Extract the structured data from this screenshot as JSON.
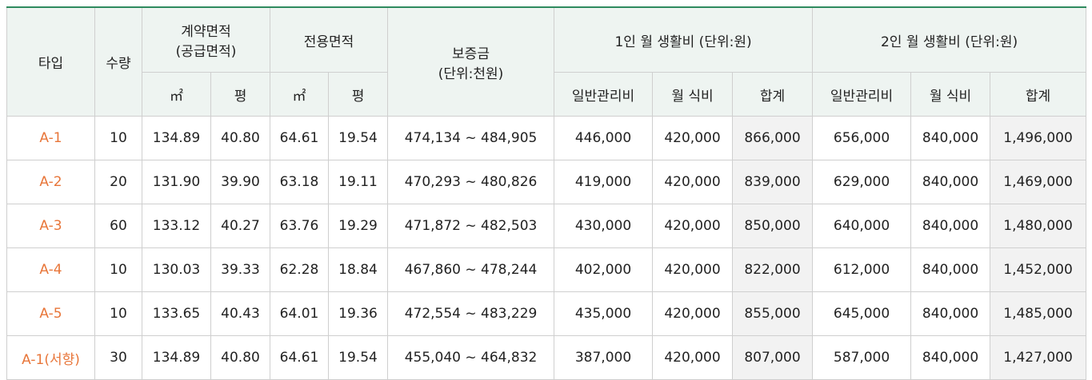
{
  "headers": {
    "type": "타입",
    "count": "수량",
    "contract_area": "계약면적\n(공급면적)",
    "exclusive_area": "전용면적",
    "deposit": "보증금\n(단위:천원)",
    "one_person": "1인 월 생활비 (단위:원)",
    "two_person": "2인 월 생활비 (단위:원)",
    "sqm": "㎡",
    "pyeong": "평",
    "general_fee": "일반관리비",
    "meal_fee": "월 식비",
    "total": "합계"
  },
  "rows": [
    {
      "type": "A-1",
      "count": "10",
      "contract_sqm": "134.89",
      "contract_py": "40.80",
      "excl_sqm": "64.61",
      "excl_py": "19.54",
      "deposit": "474,134 ~ 484,905",
      "p1_general": "446,000",
      "p1_meal": "420,000",
      "p1_total": "866,000",
      "p2_general": "656,000",
      "p2_meal": "840,000",
      "p2_total": "1,496,000"
    },
    {
      "type": "A-2",
      "count": "20",
      "contract_sqm": "131.90",
      "contract_py": "39.90",
      "excl_sqm": "63.18",
      "excl_py": "19.11",
      "deposit": "470,293 ~ 480,826",
      "p1_general": "419,000",
      "p1_meal": "420,000",
      "p1_total": "839,000",
      "p2_general": "629,000",
      "p2_meal": "840,000",
      "p2_total": "1,469,000"
    },
    {
      "type": "A-3",
      "count": "60",
      "contract_sqm": "133.12",
      "contract_py": "40.27",
      "excl_sqm": "63.76",
      "excl_py": "19.29",
      "deposit": "471,872 ~ 482,503",
      "p1_general": "430,000",
      "p1_meal": "420,000",
      "p1_total": "850,000",
      "p2_general": "640,000",
      "p2_meal": "840,000",
      "p2_total": "1,480,000"
    },
    {
      "type": "A-4",
      "count": "10",
      "contract_sqm": "130.03",
      "contract_py": "39.33",
      "excl_sqm": "62.28",
      "excl_py": "18.84",
      "deposit": "467,860 ~ 478,244",
      "p1_general": "402,000",
      "p1_meal": "420,000",
      "p1_total": "822,000",
      "p2_general": "612,000",
      "p2_meal": "840,000",
      "p2_total": "1,452,000"
    },
    {
      "type": "A-5",
      "count": "10",
      "contract_sqm": "133.65",
      "contract_py": "40.43",
      "excl_sqm": "64.01",
      "excl_py": "19.36",
      "deposit": "472,554 ~ 483,229",
      "p1_general": "435,000",
      "p1_meal": "420,000",
      "p1_total": "855,000",
      "p2_general": "645,000",
      "p2_meal": "840,000",
      "p2_total": "1,485,000"
    },
    {
      "type": "A-1(서향)",
      "count": "30",
      "contract_sqm": "134.89",
      "contract_py": "40.80",
      "excl_sqm": "64.61",
      "excl_py": "19.54",
      "deposit": "455,040 ~ 464,832",
      "p1_general": "387,000",
      "p1_meal": "420,000",
      "p1_total": "807,000",
      "p2_general": "587,000",
      "p2_meal": "840,000",
      "p2_total": "1,427,000"
    }
  ]
}
